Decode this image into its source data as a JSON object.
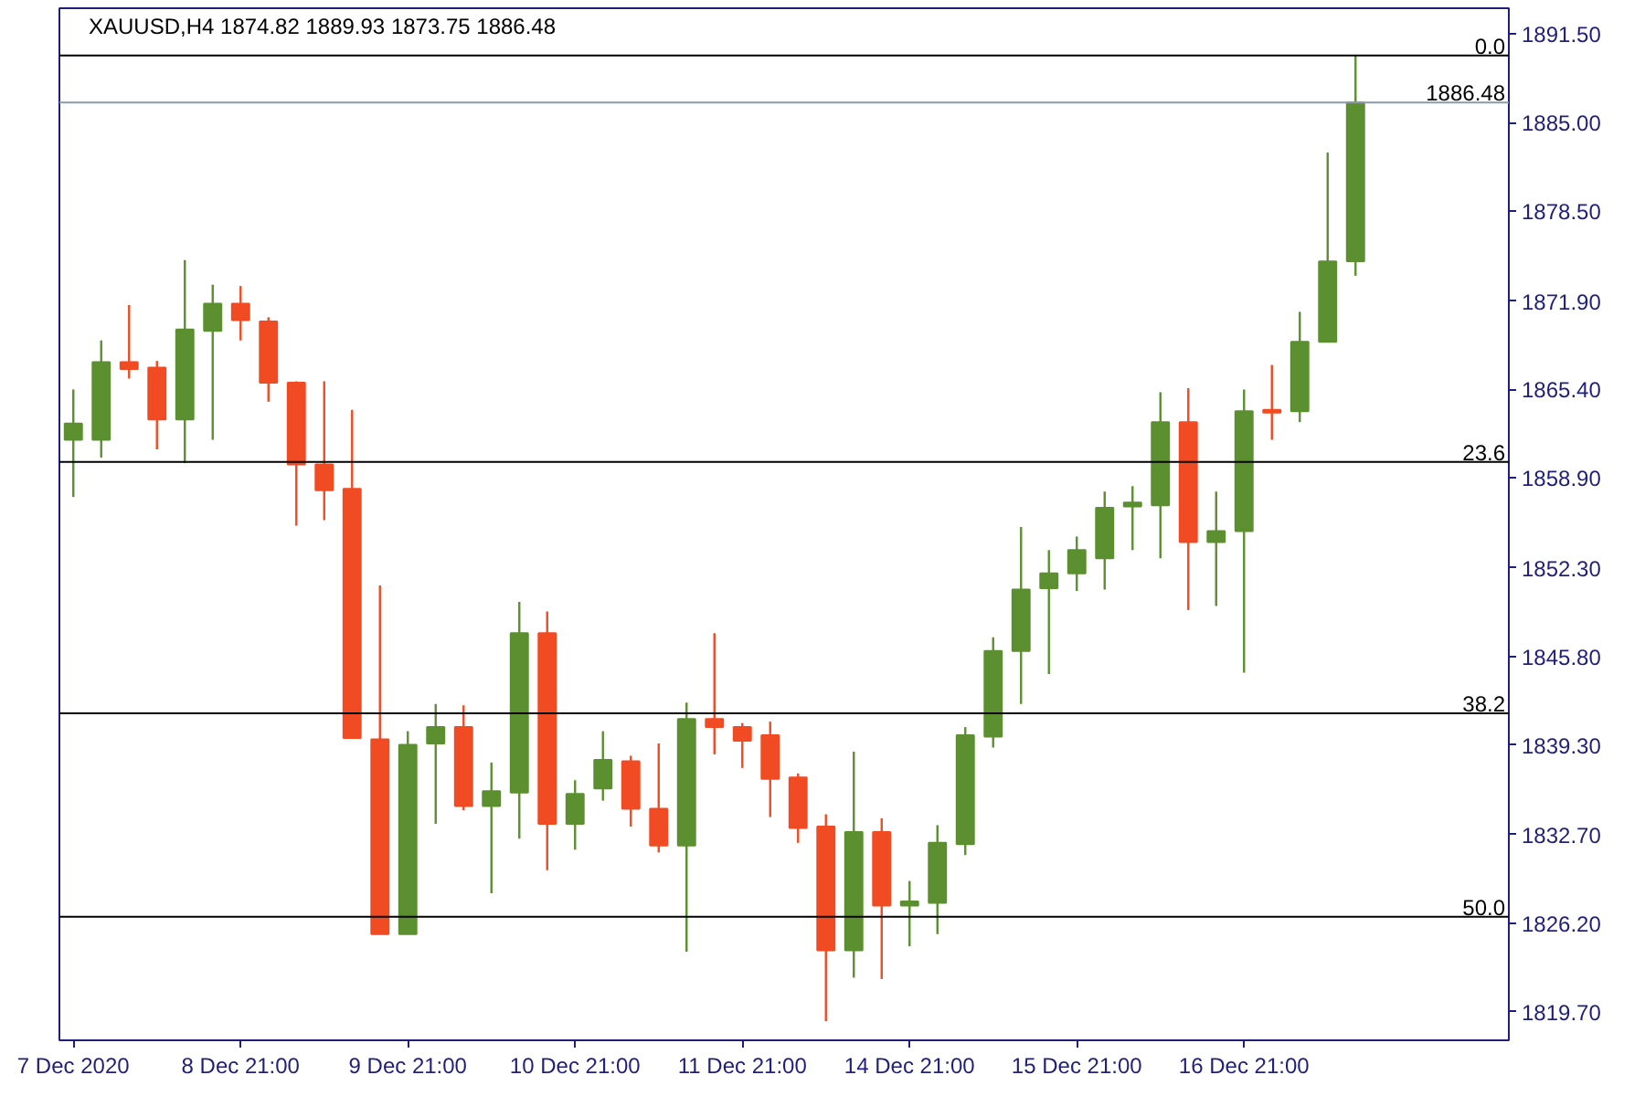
{
  "chart_data": {
    "type": "candlestick",
    "title": "XAUUSD,H4  1874.82 1889.93 1873.75 1886.48",
    "categories": [
      "7 Dec 2020",
      null,
      null,
      null,
      null,
      null,
      "8 Dec 21:00",
      null,
      null,
      null,
      null,
      null,
      "9 Dec 21:00",
      null,
      null,
      null,
      null,
      null,
      "10 Dec 21:00",
      null,
      null,
      null,
      null,
      null,
      "11 Dec 21:00",
      null,
      null,
      null,
      null,
      null,
      "14 Dec 21:00",
      null,
      null,
      null,
      null,
      null,
      "15 Dec 21:00",
      null,
      null,
      null,
      null,
      null,
      "16 Dec 21:00",
      null,
      null,
      null,
      null,
      null,
      null,
      null,
      null,
      null
    ],
    "ohlc": [
      [
        1861.7,
        1865.4,
        1857.5,
        1862.9
      ],
      [
        1861.7,
        1869.0,
        1860.4,
        1867.4
      ],
      [
        1867.4,
        1871.6,
        1866.2,
        1866.9
      ],
      [
        1867.0,
        1867.5,
        1861.0,
        1863.2
      ],
      [
        1863.2,
        1874.9,
        1860.0,
        1869.8
      ],
      [
        1869.7,
        1873.1,
        1861.7,
        1871.7
      ],
      [
        1871.7,
        1873.0,
        1869.0,
        1870.5
      ],
      [
        1870.4,
        1870.7,
        1864.5,
        1865.9
      ],
      [
        1865.9,
        1866.0,
        1855.4,
        1859.9
      ],
      [
        1859.9,
        1866.0,
        1855.8,
        1858.0
      ],
      [
        1858.1,
        1863.9,
        1839.8,
        1839.8
      ],
      [
        1839.7,
        1851.0,
        1825.4,
        1825.4
      ],
      [
        1825.4,
        1840.3,
        1825.4,
        1839.3
      ],
      [
        1839.4,
        1842.3,
        1833.5,
        1840.6
      ],
      [
        1840.6,
        1842.2,
        1834.5,
        1834.8
      ],
      [
        1834.8,
        1838.0,
        1828.4,
        1835.9
      ],
      [
        1835.8,
        1849.8,
        1832.4,
        1847.5
      ],
      [
        1847.5,
        1849.1,
        1830.1,
        1833.5
      ],
      [
        1833.5,
        1836.7,
        1831.6,
        1835.7
      ],
      [
        1836.1,
        1840.3,
        1835.2,
        1838.2
      ],
      [
        1838.1,
        1838.5,
        1833.3,
        1834.6
      ],
      [
        1834.6,
        1839.4,
        1831.4,
        1831.9
      ],
      [
        1831.9,
        1842.4,
        1824.1,
        1841.2
      ],
      [
        1841.2,
        1847.5,
        1838.6,
        1840.6
      ],
      [
        1840.6,
        1840.9,
        1837.6,
        1839.6
      ],
      [
        1840.0,
        1841.0,
        1834.0,
        1836.8
      ],
      [
        1836.9,
        1837.2,
        1832.1,
        1833.2
      ],
      [
        1833.3,
        1834.2,
        1819.0,
        1824.2
      ],
      [
        1824.2,
        1838.8,
        1822.2,
        1832.9
      ],
      [
        1832.9,
        1833.9,
        1822.1,
        1827.5
      ],
      [
        1827.5,
        1829.3,
        1824.5,
        1827.8
      ],
      [
        1827.7,
        1833.4,
        1825.4,
        1832.1
      ],
      [
        1832.0,
        1840.6,
        1831.2,
        1840.0
      ],
      [
        1839.9,
        1847.2,
        1839.1,
        1846.2
      ],
      [
        1846.2,
        1855.3,
        1842.3,
        1850.7
      ],
      [
        1850.8,
        1853.6,
        1844.5,
        1851.9
      ],
      [
        1851.9,
        1854.6,
        1850.6,
        1853.6
      ],
      [
        1853.0,
        1857.9,
        1850.7,
        1856.7
      ],
      [
        1856.8,
        1858.3,
        1853.6,
        1857.1
      ],
      [
        1856.9,
        1865.2,
        1853.0,
        1863.0
      ],
      [
        1863.0,
        1865.5,
        1849.2,
        1854.2
      ],
      [
        1854.2,
        1857.9,
        1849.5,
        1855.0
      ],
      [
        1855.0,
        1865.4,
        1844.6,
        1863.8
      ],
      [
        1863.9,
        1867.2,
        1861.7,
        1863.7
      ],
      [
        1863.8,
        1871.1,
        1863.0,
        1868.9
      ],
      [
        1868.9,
        1882.8,
        1868.9,
        1874.8
      ],
      [
        1874.82,
        1889.93,
        1873.75,
        1886.48
      ],
      null,
      null,
      null,
      null,
      null
    ],
    "colors": [
      "#5b8f2f",
      "#5b8f2f",
      "#f04b23",
      "#f04b23",
      "#5b8f2f",
      "#5b8f2f",
      "#f04b23",
      "#f04b23",
      "#f04b23",
      "#f04b23",
      "#f04b23",
      "#f04b23",
      "#5b8f2f",
      "#5b8f2f",
      "#f04b23",
      "#5b8f2f",
      "#5b8f2f",
      "#f04b23",
      "#5b8f2f",
      "#5b8f2f",
      "#f04b23",
      "#f04b23",
      "#5b8f2f",
      "#f04b23",
      "#f04b23",
      "#f04b23",
      "#f04b23",
      "#f04b23",
      "#5b8f2f",
      "#f04b23",
      "#5b8f2f",
      "#5b8f2f",
      "#5b8f2f",
      "#5b8f2f",
      "#5b8f2f",
      "#5b8f2f",
      "#5b8f2f",
      "#5b8f2f",
      "#5b8f2f",
      "#5b8f2f",
      "#f04b23",
      "#5b8f2f",
      "#5b8f2f",
      "#f04b23",
      "#5b8f2f",
      "#5b8f2f",
      "#5b8f2f",
      null,
      null,
      null,
      null,
      null
    ],
    "ylim": [
      1817.6,
      1893.4
    ],
    "yticks": [
      {
        "value": 1819.7,
        "label": "1819.70"
      },
      {
        "value": 1826.2,
        "label": "1826.20"
      },
      {
        "value": 1832.7,
        "label": "1832.70"
      },
      {
        "value": 1839.3,
        "label": "1839.30"
      },
      {
        "value": 1845.8,
        "label": "1845.80"
      },
      {
        "value": 1852.3,
        "label": "1852.30"
      },
      {
        "value": 1858.9,
        "label": "1858.90"
      },
      {
        "value": 1865.4,
        "label": "1865.40"
      },
      {
        "value": 1871.9,
        "label": "1871.90"
      },
      {
        "value": 1878.5,
        "label": "1878.50"
      },
      {
        "value": 1885.0,
        "label": "1885.00"
      },
      {
        "value": 1891.5,
        "label": "1891.50"
      }
    ],
    "ref_lines": [
      {
        "axis": "y",
        "value": 1889.93,
        "color": "#000000"
      },
      {
        "axis": "y",
        "value": 1860.08,
        "color": "#000000"
      },
      {
        "axis": "y",
        "value": 1841.61,
        "color": "#000000"
      },
      {
        "axis": "y",
        "value": 1826.68,
        "color": "#000000"
      },
      {
        "axis": "y",
        "value": 1886.48,
        "color": "#8a9aa6"
      }
    ],
    "annotations": [
      {
        "text": "0.0",
        "y": 1889.93
      },
      {
        "text": "23.6",
        "y": 1860.08
      },
      {
        "text": "38.2",
        "y": 1841.61
      },
      {
        "text": "50.0",
        "y": 1826.68
      },
      {
        "text": "1886.48",
        "y": 1886.48
      }
    ]
  }
}
